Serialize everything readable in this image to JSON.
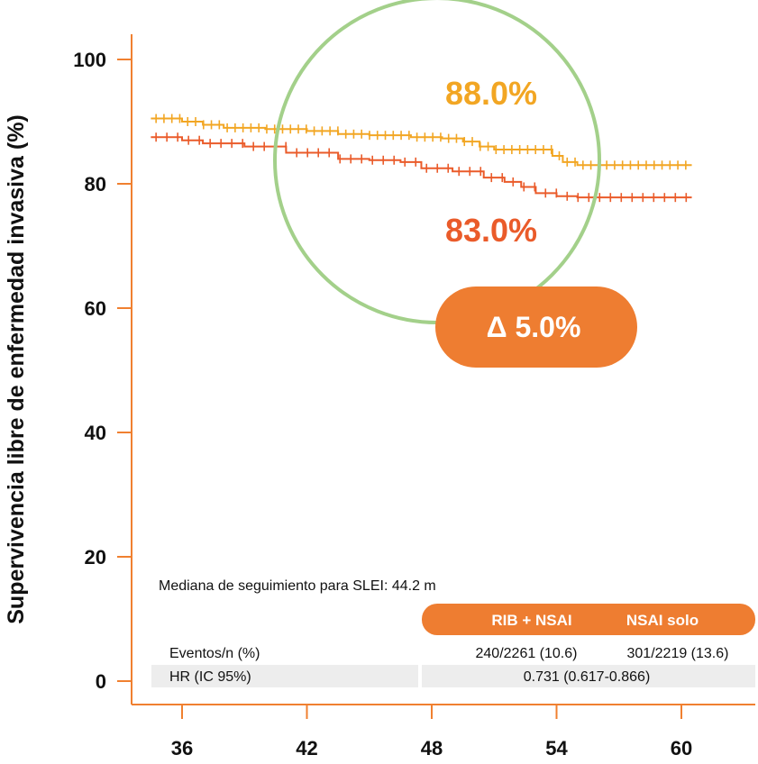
{
  "chart_data": {
    "type": "line",
    "xlabel": "",
    "ylabel": "Supervivencia libre de enfermedad invasiva (%)",
    "xlim": [
      34,
      64
    ],
    "ylim": [
      0,
      100
    ],
    "x_ticks": [
      36,
      42,
      48,
      54,
      60
    ],
    "y_ticks": [
      0,
      20,
      40,
      60,
      80,
      100
    ],
    "grid": false,
    "colors": {
      "axis": "#f08030",
      "circle": "#a3d08a",
      "accent": "#ee7d31",
      "table_row": "#ededed"
    },
    "series": [
      {
        "name": "RIB + NSAI",
        "color": "#f2a623",
        "x": [
          34.5,
          36.0,
          37.0,
          38.0,
          40.0,
          42.0,
          43.5,
          45.0,
          47.0,
          48.5,
          49.5,
          50.3,
          51.0,
          53.0,
          53.8,
          54.3,
          55.0,
          57.0,
          60.5
        ],
        "y": [
          90.5,
          90.0,
          89.5,
          89.0,
          88.8,
          88.5,
          88.0,
          87.8,
          87.5,
          87.3,
          86.8,
          86.0,
          85.5,
          85.5,
          84.5,
          83.5,
          83.0,
          83.0,
          83.0
        ]
      },
      {
        "name": "NSAI solo",
        "color": "#ea5b2a",
        "x": [
          34.5,
          36.0,
          37.0,
          39.0,
          41.0,
          43.5,
          45.0,
          46.5,
          47.5,
          49.0,
          50.5,
          51.5,
          52.3,
          53.0,
          54.0,
          55.0,
          60.5
        ],
        "y": [
          87.5,
          87.0,
          86.5,
          86.0,
          85.0,
          84.0,
          83.8,
          83.5,
          82.5,
          82.0,
          81.0,
          80.3,
          79.5,
          78.5,
          78.0,
          77.8,
          77.8
        ]
      }
    ],
    "annotations": {
      "rib_pct": "88.0%",
      "nsai_pct": "83.0%",
      "delta": "Δ 5.0%"
    }
  },
  "table": {
    "median_followup": "Mediana de seguimiento para SLEI: 44.2 m",
    "col_headers": [
      "RIB + NSAI",
      "NSAI solo"
    ],
    "rows": [
      {
        "label": "Eventos/n (%)",
        "values": [
          "240/2261 (10.6)",
          "301/2219 (13.6)"
        ]
      },
      {
        "label": "HR (IC 95%)",
        "value": "0.731 (0.617-0.866)"
      }
    ]
  }
}
